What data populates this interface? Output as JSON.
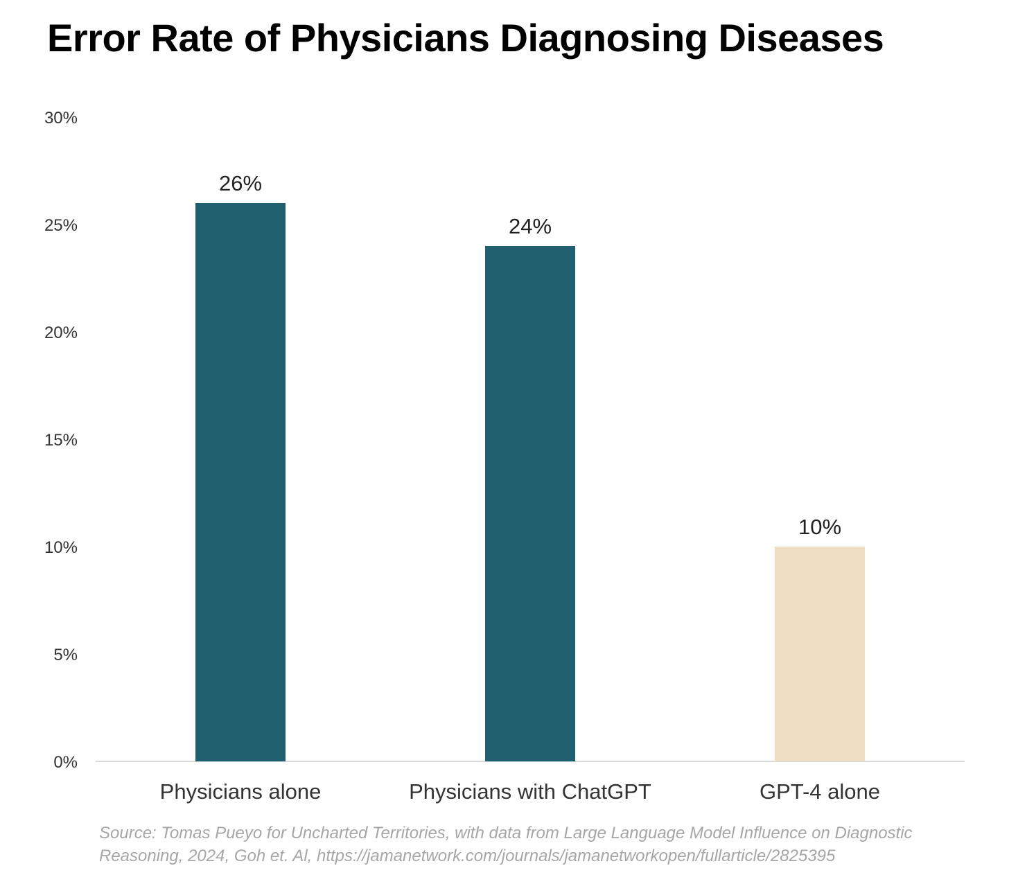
{
  "chart_data": {
    "type": "bar",
    "title": "Error Rate of Physicians Diagnosing Diseases",
    "categories": [
      "Physicians alone",
      "Physicians with ChatGPT",
      "GPT-4 alone"
    ],
    "values": [
      26,
      24,
      10
    ],
    "value_labels": [
      "26%",
      "24%",
      "10%"
    ],
    "bar_colors": [
      "#1f5f6e",
      "#1f5f6e",
      "#efdfc2"
    ],
    "ylim": [
      0,
      30
    ],
    "y_ticks": [
      0,
      5,
      10,
      15,
      20,
      25,
      30
    ],
    "y_tick_labels": [
      "0%",
      "5%",
      "10%",
      "15%",
      "20%",
      "25%",
      "30%"
    ],
    "xlabel": "",
    "ylabel": "",
    "grid": false,
    "axis_color": "#cccccc"
  },
  "source_lines": [
    "Source: Tomas Pueyo for Uncharted Territories, with data from Large Language Model Influence on Diagnostic",
    "Reasoning, 2024, Goh et. Al, https://jamanetwork.com/journals/jamanetworkopen/fullarticle/2825395"
  ]
}
